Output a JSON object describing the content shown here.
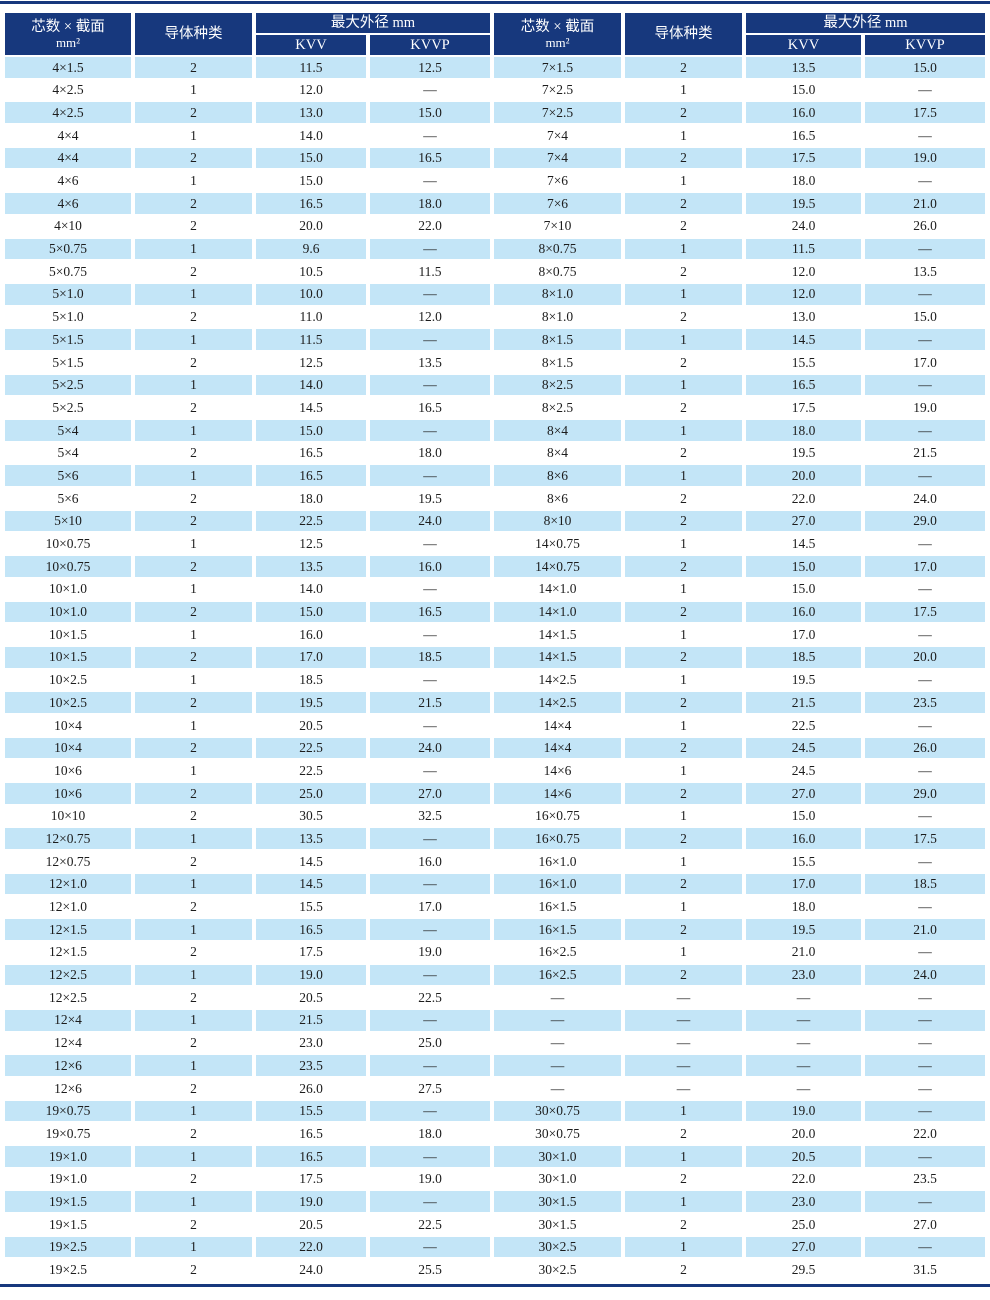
{
  "table": {
    "title_semantics": "KVV / KVVP control cable maximum outer diameter table",
    "colors": {
      "header_bg": "#17387d",
      "alt_row_bg": "#c3e5f7",
      "rule": "#17387d",
      "text": "#1c1c1c",
      "header_text": "#ffffff"
    },
    "header": {
      "spec_label": "芯数 × 截面",
      "spec_unit": "mm²",
      "conductor_label": "导体种类",
      "diameter_label": "最大外径 mm",
      "kvv_label": "KVV",
      "kvvp_label": "KVVP"
    },
    "rows_left": [
      [
        "4×1.5",
        "2",
        "11.5",
        "12.5"
      ],
      [
        "4×2.5",
        "1",
        "12.0",
        "—"
      ],
      [
        "4×2.5",
        "2",
        "13.0",
        "15.0"
      ],
      [
        "4×4",
        "1",
        "14.0",
        "—"
      ],
      [
        "4×4",
        "2",
        "15.0",
        "16.5"
      ],
      [
        "4×6",
        "1",
        "15.0",
        "—"
      ],
      [
        "4×6",
        "2",
        "16.5",
        "18.0"
      ],
      [
        "4×10",
        "2",
        "20.0",
        "22.0"
      ],
      [
        "5×0.75",
        "1",
        "9.6",
        "—"
      ],
      [
        "5×0.75",
        "2",
        "10.5",
        "11.5"
      ],
      [
        "5×1.0",
        "1",
        "10.0",
        "—"
      ],
      [
        "5×1.0",
        "2",
        "11.0",
        "12.0"
      ],
      [
        "5×1.5",
        "1",
        "11.5",
        "—"
      ],
      [
        "5×1.5",
        "2",
        "12.5",
        "13.5"
      ],
      [
        "5×2.5",
        "1",
        "14.0",
        "—"
      ],
      [
        "5×2.5",
        "2",
        "14.5",
        "16.5"
      ],
      [
        "5×4",
        "1",
        "15.0",
        "—"
      ],
      [
        "5×4",
        "2",
        "16.5",
        "18.0"
      ],
      [
        "5×6",
        "1",
        "16.5",
        "—"
      ],
      [
        "5×6",
        "2",
        "18.0",
        "19.5"
      ],
      [
        "5×10",
        "2",
        "22.5",
        "24.0"
      ],
      [
        "10×0.75",
        "1",
        "12.5",
        "—"
      ],
      [
        "10×0.75",
        "2",
        "13.5",
        "16.0"
      ],
      [
        "10×1.0",
        "1",
        "14.0",
        "—"
      ],
      [
        "10×1.0",
        "2",
        "15.0",
        "16.5"
      ],
      [
        "10×1.5",
        "1",
        "16.0",
        "—"
      ],
      [
        "10×1.5",
        "2",
        "17.0",
        "18.5"
      ],
      [
        "10×2.5",
        "1",
        "18.5",
        "—"
      ],
      [
        "10×2.5",
        "2",
        "19.5",
        "21.5"
      ],
      [
        "10×4",
        "1",
        "20.5",
        "—"
      ],
      [
        "10×4",
        "2",
        "22.5",
        "24.0"
      ],
      [
        "10×6",
        "1",
        "22.5",
        "—"
      ],
      [
        "10×6",
        "2",
        "25.0",
        "27.0"
      ],
      [
        "10×10",
        "2",
        "30.5",
        "32.5"
      ],
      [
        "12×0.75",
        "1",
        "13.5",
        "—"
      ],
      [
        "12×0.75",
        "2",
        "14.5",
        "16.0"
      ],
      [
        "12×1.0",
        "1",
        "14.5",
        "—"
      ],
      [
        "12×1.0",
        "2",
        "15.5",
        "17.0"
      ],
      [
        "12×1.5",
        "1",
        "16.5",
        "—"
      ],
      [
        "12×1.5",
        "2",
        "17.5",
        "19.0"
      ],
      [
        "12×2.5",
        "1",
        "19.0",
        "—"
      ],
      [
        "12×2.5",
        "2",
        "20.5",
        "22.5"
      ],
      [
        "12×4",
        "1",
        "21.5",
        "—"
      ],
      [
        "12×4",
        "2",
        "23.0",
        "25.0"
      ],
      [
        "12×6",
        "1",
        "23.5",
        "—"
      ],
      [
        "12×6",
        "2",
        "26.0",
        "27.5"
      ],
      [
        "19×0.75",
        "1",
        "15.5",
        "—"
      ],
      [
        "19×0.75",
        "2",
        "16.5",
        "18.0"
      ],
      [
        "19×1.0",
        "1",
        "16.5",
        "—"
      ],
      [
        "19×1.0",
        "2",
        "17.5",
        "19.0"
      ],
      [
        "19×1.5",
        "1",
        "19.0",
        "—"
      ],
      [
        "19×1.5",
        "2",
        "20.5",
        "22.5"
      ],
      [
        "19×2.5",
        "1",
        "22.0",
        "—"
      ],
      [
        "19×2.5",
        "2",
        "24.0",
        "25.5"
      ]
    ],
    "rows_right": [
      [
        "7×1.5",
        "2",
        "13.5",
        "15.0"
      ],
      [
        "7×2.5",
        "1",
        "15.0",
        "—"
      ],
      [
        "7×2.5",
        "2",
        "16.0",
        "17.5"
      ],
      [
        "7×4",
        "1",
        "16.5",
        "—"
      ],
      [
        "7×4",
        "2",
        "17.5",
        "19.0"
      ],
      [
        "7×6",
        "1",
        "18.0",
        "—"
      ],
      [
        "7×6",
        "2",
        "19.5",
        "21.0"
      ],
      [
        "7×10",
        "2",
        "24.0",
        "26.0"
      ],
      [
        "8×0.75",
        "1",
        "11.5",
        "—"
      ],
      [
        "8×0.75",
        "2",
        "12.0",
        "13.5"
      ],
      [
        "8×1.0",
        "1",
        "12.0",
        "—"
      ],
      [
        "8×1.0",
        "2",
        "13.0",
        "15.0"
      ],
      [
        "8×1.5",
        "1",
        "14.5",
        "—"
      ],
      [
        "8×1.5",
        "2",
        "15.5",
        "17.0"
      ],
      [
        "8×2.5",
        "1",
        "16.5",
        "—"
      ],
      [
        "8×2.5",
        "2",
        "17.5",
        "19.0"
      ],
      [
        "8×4",
        "1",
        "18.0",
        "—"
      ],
      [
        "8×4",
        "2",
        "19.5",
        "21.5"
      ],
      [
        "8×6",
        "1",
        "20.0",
        "—"
      ],
      [
        "8×6",
        "2",
        "22.0",
        "24.0"
      ],
      [
        "8×10",
        "2",
        "27.0",
        "29.0"
      ],
      [
        "14×0.75",
        "1",
        "14.5",
        "—"
      ],
      [
        "14×0.75",
        "2",
        "15.0",
        "17.0"
      ],
      [
        "14×1.0",
        "1",
        "15.0",
        "—"
      ],
      [
        "14×1.0",
        "2",
        "16.0",
        "17.5"
      ],
      [
        "14×1.5",
        "1",
        "17.0",
        "—"
      ],
      [
        "14×1.5",
        "2",
        "18.5",
        "20.0"
      ],
      [
        "14×2.5",
        "1",
        "19.5",
        "—"
      ],
      [
        "14×2.5",
        "2",
        "21.5",
        "23.5"
      ],
      [
        "14×4",
        "1",
        "22.5",
        "—"
      ],
      [
        "14×4",
        "2",
        "24.5",
        "26.0"
      ],
      [
        "14×6",
        "1",
        "24.5",
        "—"
      ],
      [
        "14×6",
        "2",
        "27.0",
        "29.0"
      ],
      [
        "16×0.75",
        "1",
        "15.0",
        "—"
      ],
      [
        "16×0.75",
        "2",
        "16.0",
        "17.5"
      ],
      [
        "16×1.0",
        "1",
        "15.5",
        "—"
      ],
      [
        "16×1.0",
        "2",
        "17.0",
        "18.5"
      ],
      [
        "16×1.5",
        "1",
        "18.0",
        "—"
      ],
      [
        "16×1.5",
        "2",
        "19.5",
        "21.0"
      ],
      [
        "16×2.5",
        "1",
        "21.0",
        "—"
      ],
      [
        "16×2.5",
        "2",
        "23.0",
        "24.0"
      ],
      [
        "—",
        "—",
        "—",
        "—"
      ],
      [
        "—",
        "—",
        "—",
        "—"
      ],
      [
        "—",
        "—",
        "—",
        "—"
      ],
      [
        "—",
        "—",
        "—",
        "—"
      ],
      [
        "—",
        "—",
        "—",
        "—"
      ],
      [
        "30×0.75",
        "1",
        "19.0",
        "—"
      ],
      [
        "30×0.75",
        "2",
        "20.0",
        "22.0"
      ],
      [
        "30×1.0",
        "1",
        "20.5",
        "—"
      ],
      [
        "30×1.0",
        "2",
        "22.0",
        "23.5"
      ],
      [
        "30×1.5",
        "1",
        "23.0",
        "—"
      ],
      [
        "30×1.5",
        "2",
        "25.0",
        "27.0"
      ],
      [
        "30×2.5",
        "1",
        "27.0",
        "—"
      ],
      [
        "30×2.5",
        "2",
        "29.5",
        "31.5"
      ]
    ]
  }
}
